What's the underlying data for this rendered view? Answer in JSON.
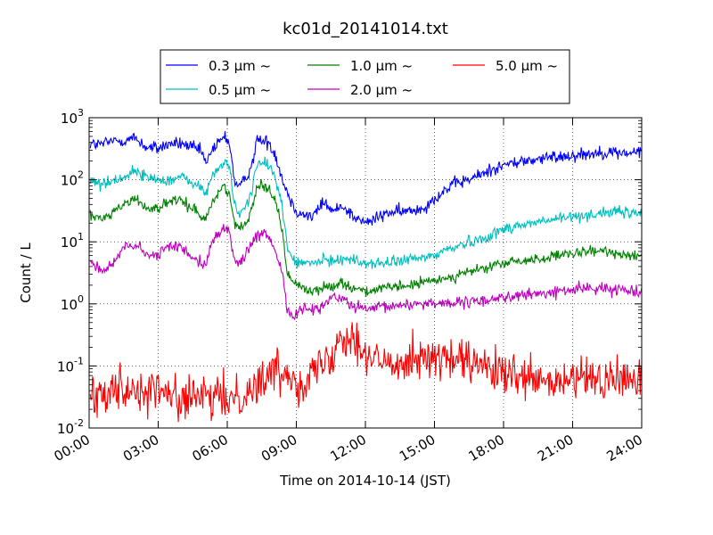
{
  "chart_data": {
    "type": "line",
    "title": "kc01d_20141014.txt",
    "xlabel": "Time on 2014-10-14 (JST)",
    "ylabel": "Count / L",
    "xlim": [
      0,
      24
    ],
    "ylim": [
      0.01,
      1000
    ],
    "yscale": "log",
    "grid": true,
    "legend_position": "top",
    "x_ticks": [
      "00:00",
      "03:00",
      "06:00",
      "09:00",
      "12:00",
      "15:00",
      "18:00",
      "21:00",
      "24:00"
    ],
    "y_ticks": [
      {
        "base": "10",
        "exp": "-2"
      },
      {
        "base": "10",
        "exp": "-1"
      },
      {
        "base": "10",
        "exp": "0"
      },
      {
        "base": "10",
        "exp": "1"
      },
      {
        "base": "10",
        "exp": "2"
      },
      {
        "base": "10",
        "exp": "3"
      }
    ],
    "series": [
      {
        "name": "0.3 μm ~",
        "color": "#0000ff",
        "noise": 0.1,
        "x": [
          0.05,
          0.5,
          1.0,
          1.5,
          2.0,
          2.5,
          3.0,
          3.5,
          4.0,
          4.5,
          4.9,
          5.1,
          5.3,
          5.6,
          5.9,
          6.1,
          6.3,
          6.5,
          6.8,
          7.1,
          7.3,
          7.5,
          7.8,
          8.1,
          8.4,
          8.6,
          8.9,
          9.1,
          9.3,
          9.7,
          10.2,
          10.6,
          11.0,
          11.5,
          12.0,
          12.5,
          13.0,
          13.5,
          14.0,
          14.5,
          15.0,
          15.5,
          16.0,
          16.5,
          17.0,
          17.5,
          18.0,
          18.5,
          19.0,
          19.5,
          20.0,
          20.5,
          21.0,
          21.5,
          22.0,
          22.5,
          23.0,
          23.5,
          24.0
        ],
        "y": [
          380,
          370,
          420,
          430,
          470,
          330,
          320,
          380,
          380,
          330,
          280,
          170,
          300,
          380,
          500,
          400,
          100,
          75,
          100,
          200,
          450,
          420,
          400,
          250,
          100,
          65,
          35,
          30,
          28,
          25,
          45,
          30,
          40,
          25,
          20,
          24,
          30,
          30,
          32,
          35,
          50,
          70,
          90,
          100,
          120,
          150,
          170,
          190,
          200,
          215,
          225,
          240,
          250,
          260,
          270,
          280,
          270,
          270,
          280
        ]
      },
      {
        "name": "0.5 μm ~",
        "color": "#00bfbf",
        "noise": 0.09,
        "x": [
          0.05,
          0.5,
          1.0,
          1.5,
          2.0,
          2.5,
          3.0,
          3.5,
          4.0,
          4.5,
          4.9,
          5.1,
          5.3,
          5.6,
          5.9,
          6.1,
          6.3,
          6.5,
          6.8,
          7.1,
          7.3,
          7.5,
          7.8,
          8.1,
          8.4,
          8.6,
          8.9,
          9.1,
          9.3,
          9.7,
          10.2,
          10.6,
          11.0,
          11.5,
          12.0,
          12.5,
          13.0,
          13.5,
          14.0,
          14.5,
          15.0,
          15.5,
          16.0,
          16.5,
          17.0,
          17.5,
          18.0,
          18.5,
          19.0,
          19.5,
          20.0,
          20.5,
          21.0,
          21.5,
          22.0,
          22.5,
          23.0,
          23.5,
          24.0
        ],
        "y": [
          100,
          85,
          95,
          110,
          140,
          110,
          100,
          100,
          110,
          90,
          70,
          60,
          110,
          150,
          200,
          160,
          40,
          28,
          35,
          80,
          180,
          180,
          170,
          110,
          35,
          8,
          5,
          4.5,
          4.5,
          4.5,
          5,
          5,
          5.5,
          5,
          4.5,
          4.5,
          4.5,
          5,
          5.2,
          5.5,
          6,
          7.5,
          8.5,
          10,
          11,
          13,
          16,
          18,
          19,
          21,
          22,
          24,
          25,
          27,
          28,
          30,
          30,
          29,
          29
        ]
      },
      {
        "name": "1.0 μm ~",
        "color": "#008000",
        "noise": 0.08,
        "x": [
          0.05,
          0.5,
          1.0,
          1.5,
          2.0,
          2.5,
          3.0,
          3.5,
          4.0,
          4.5,
          4.9,
          5.1,
          5.3,
          5.6,
          5.9,
          6.1,
          6.3,
          6.5,
          6.8,
          7.1,
          7.3,
          7.5,
          7.8,
          8.1,
          8.4,
          8.6,
          8.9,
          9.1,
          9.3,
          9.7,
          10.2,
          10.6,
          11.0,
          11.5,
          12.0,
          12.5,
          13.0,
          13.5,
          14.0,
          14.5,
          15.0,
          15.5,
          16.0,
          16.5,
          17.0,
          17.5,
          18.0,
          18.5,
          19.0,
          19.5,
          20.0,
          20.5,
          21.0,
          21.5,
          22.0,
          22.5,
          23.0,
          23.5,
          24.0
        ],
        "y": [
          27,
          23,
          30,
          40,
          50,
          35,
          35,
          45,
          45,
          35,
          25,
          25,
          40,
          60,
          80,
          60,
          20,
          16,
          20,
          40,
          80,
          80,
          75,
          45,
          15,
          3,
          2.2,
          2,
          1.8,
          1.6,
          1.8,
          2,
          2.2,
          1.8,
          1.6,
          1.7,
          1.8,
          1.9,
          2,
          2.2,
          2.4,
          2.6,
          2.9,
          3.3,
          3.6,
          4,
          4.5,
          4.8,
          5,
          5.3,
          5.6,
          6,
          6.3,
          6.8,
          7,
          7,
          6.5,
          6.2,
          6
        ]
      },
      {
        "name": "2.0 μm ~",
        "color": "#bf00bf",
        "noise": 0.09,
        "x": [
          0.05,
          0.5,
          1.0,
          1.5,
          2.0,
          2.5,
          3.0,
          3.5,
          4.0,
          4.5,
          4.9,
          5.1,
          5.3,
          5.6,
          5.9,
          6.1,
          6.3,
          6.5,
          6.8,
          7.1,
          7.3,
          7.5,
          7.8,
          8.1,
          8.4,
          8.6,
          8.9,
          9.1,
          9.3,
          9.7,
          10.2,
          10.6,
          11.0,
          11.5,
          12.0,
          12.5,
          13.0,
          13.5,
          14.0,
          14.5,
          15.0,
          15.5,
          16.0,
          16.5,
          17.0,
          17.5,
          18.0,
          18.5,
          19.0,
          19.5,
          20.0,
          20.5,
          21.0,
          21.5,
          22.0,
          22.5,
          23.0,
          23.5,
          24.0
        ],
        "y": [
          5,
          3.5,
          4,
          8,
          9,
          6,
          6,
          9,
          8,
          6,
          4.5,
          5,
          9,
          13,
          18,
          13,
          5.5,
          4.5,
          6,
          10,
          12,
          13,
          12,
          7,
          3,
          0.9,
          0.6,
          0.7,
          0.9,
          0.8,
          1.0,
          1.3,
          1.2,
          0.9,
          0.8,
          0.85,
          0.9,
          0.95,
          1.0,
          1.0,
          1.05,
          1.05,
          1.0,
          1.05,
          1.1,
          1.2,
          1.3,
          1.3,
          1.4,
          1.45,
          1.5,
          1.6,
          1.7,
          1.8,
          1.8,
          1.7,
          1.7,
          1.7,
          1.6
        ]
      },
      {
        "name": "5.0 μm ~",
        "color": "#ff0000",
        "noise": 0.33,
        "x": [
          0.05,
          1.0,
          2.0,
          3.0,
          4.0,
          5.0,
          6.0,
          7.0,
          7.5,
          8.0,
          8.5,
          9.0,
          9.5,
          10.0,
          10.5,
          11.0,
          11.5,
          12.0,
          12.5,
          13.0,
          13.5,
          14.0,
          15.0,
          16.0,
          17.0,
          18.0,
          19.0,
          20.0,
          21.0,
          22.0,
          23.0,
          24.0
        ],
        "y": [
          0.03,
          0.05,
          0.04,
          0.04,
          0.03,
          0.03,
          0.03,
          0.04,
          0.06,
          0.08,
          0.08,
          0.06,
          0.06,
          0.1,
          0.15,
          0.35,
          0.3,
          0.15,
          0.12,
          0.1,
          0.12,
          0.15,
          0.13,
          0.12,
          0.1,
          0.07,
          0.06,
          0.05,
          0.06,
          0.06,
          0.06,
          0.06
        ]
      }
    ]
  }
}
